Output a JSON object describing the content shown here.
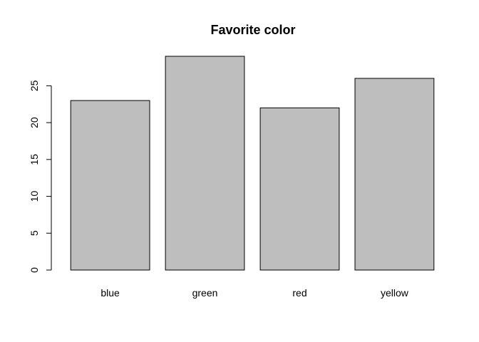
{
  "chart_data": {
    "type": "bar",
    "title": "Favorite color",
    "xlabel": "",
    "ylabel": "",
    "categories": [
      "blue",
      "green",
      "red",
      "yellow"
    ],
    "values": [
      23,
      29,
      22,
      26
    ],
    "ylim": [
      0,
      29
    ],
    "yticks": [
      0,
      5,
      10,
      15,
      20,
      25
    ],
    "bar_color": "#bebebe",
    "border_color": "#000000",
    "grid": false,
    "legend": "none"
  }
}
